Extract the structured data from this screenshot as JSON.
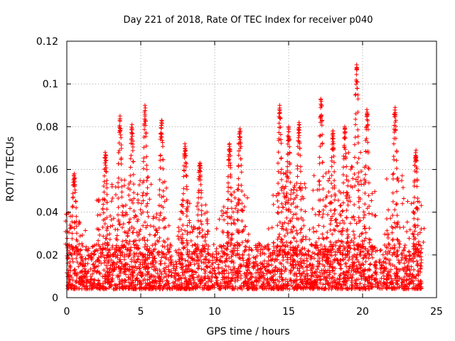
{
  "chart_data": {
    "type": "scatter",
    "title": "Day 221 of 2018, Rate Of TEC Index for receiver p040",
    "xlabel": "GPS time / hours",
    "ylabel": "ROTI / TECUs",
    "xlim": [
      0,
      25
    ],
    "ylim": [
      0,
      0.12
    ],
    "xticks": [
      0,
      5,
      10,
      15,
      20,
      25
    ],
    "xtick_labels": [
      "0",
      "5",
      "10",
      "15",
      "20",
      "25"
    ],
    "yticks": [
      0,
      0.02,
      0.04,
      0.06,
      0.08,
      0.1,
      0.12
    ],
    "ytick_labels": [
      "0",
      "0.02",
      "0.04",
      "0.06",
      "0.08",
      "0.1",
      "0.12"
    ],
    "grid": true,
    "marker": "+",
    "color": "#ff0000",
    "series": [
      {
        "name": "ROTI",
        "x_range": [
          0,
          24
        ],
        "baseline": {
          "typical_low": 0.004,
          "typical_high": 0.025
        },
        "peaks": [
          {
            "x": 0.5,
            "y": 0.058
          },
          {
            "x": 2.6,
            "y": 0.068
          },
          {
            "x": 3.6,
            "y": 0.085
          },
          {
            "x": 4.4,
            "y": 0.081
          },
          {
            "x": 5.3,
            "y": 0.09
          },
          {
            "x": 6.4,
            "y": 0.083
          },
          {
            "x": 8.0,
            "y": 0.072
          },
          {
            "x": 9.0,
            "y": 0.063
          },
          {
            "x": 11.0,
            "y": 0.072
          },
          {
            "x": 11.7,
            "y": 0.079
          },
          {
            "x": 14.4,
            "y": 0.09
          },
          {
            "x": 15.0,
            "y": 0.08
          },
          {
            "x": 15.7,
            "y": 0.082
          },
          {
            "x": 17.2,
            "y": 0.093
          },
          {
            "x": 18.0,
            "y": 0.078
          },
          {
            "x": 18.8,
            "y": 0.08
          },
          {
            "x": 19.6,
            "y": 0.109
          },
          {
            "x": 20.3,
            "y": 0.088
          },
          {
            "x": 22.2,
            "y": 0.089
          },
          {
            "x": 23.6,
            "y": 0.069
          }
        ]
      }
    ]
  }
}
